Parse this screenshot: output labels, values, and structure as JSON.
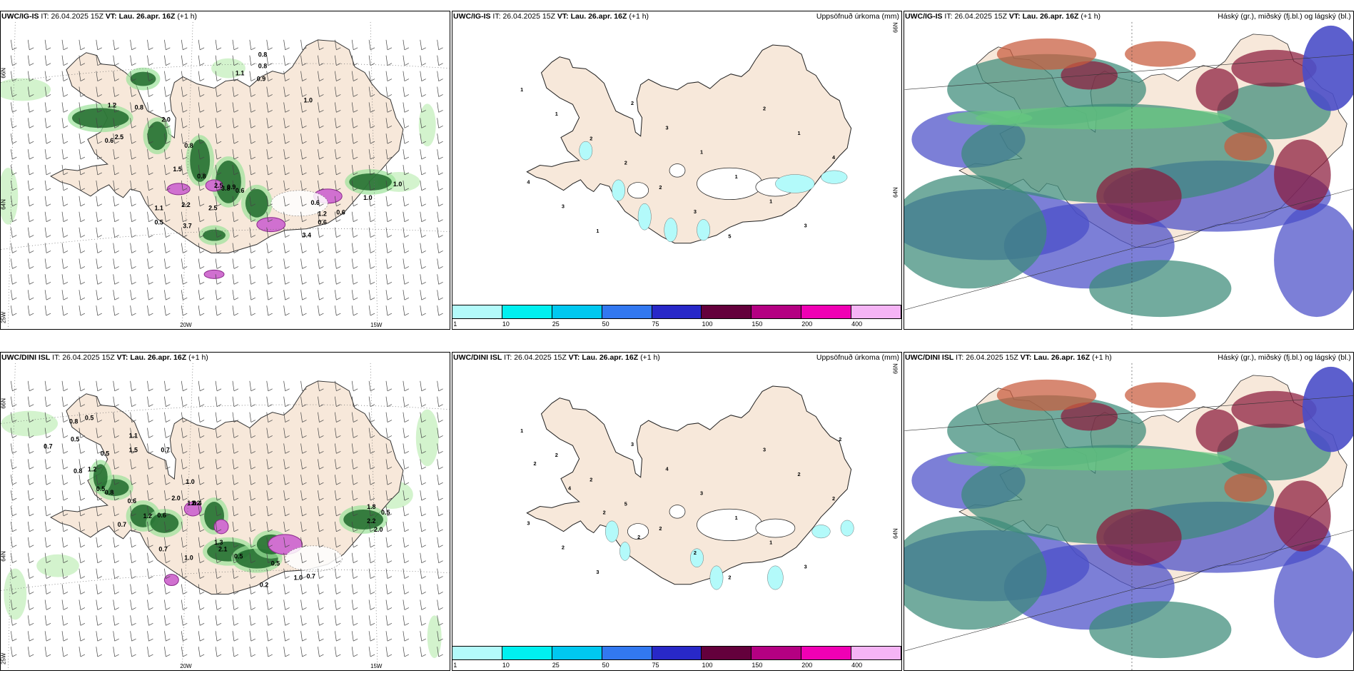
{
  "panels": [
    {
      "id": "p1",
      "model": "UWC/IG-IS",
      "it_label": "IT:",
      "it": "26.04.2025 15Z",
      "vt_label": "VT:",
      "vt": "Lau. 26.apr. 16Z",
      "lead": "(+1 h)",
      "right_title": "",
      "kind": "wind"
    },
    {
      "id": "p2",
      "model": "UWC/IG-IS",
      "it_label": "IT:",
      "it": "26.04.2025 15Z",
      "vt_label": "VT:",
      "vt": "Lau. 26.apr. 16Z",
      "lead": "(+1 h)",
      "right_title": "Uppsöfnuð úrkoma (mm)",
      "kind": "precip"
    },
    {
      "id": "p3",
      "model": "UWC/IG-IS",
      "it_label": "IT:",
      "it": "26.04.2025 15Z",
      "vt_label": "VT:",
      "vt": "Lau. 26.apr. 16Z",
      "lead": "(+1 h)",
      "right_title": "Háský (gr.), miðský (fj.bl.) og lágský (bl.)",
      "kind": "cloud"
    },
    {
      "id": "p4",
      "model": "UWC/DINI ISL",
      "it_label": "IT:",
      "it": "26.04.2025 15Z",
      "vt_label": "VT:",
      "vt": "Lau. 26.apr. 16Z",
      "lead": "(+1 h)",
      "right_title": "",
      "kind": "wind"
    },
    {
      "id": "p5",
      "model": "UWC/DINI ISL",
      "it_label": "IT:",
      "it": "26.04.2025 15Z",
      "vt_label": "VT:",
      "vt": "Lau. 26.apr. 16Z",
      "lead": "(+1 h)",
      "right_title": "Uppsöfnuð úrkoma (mm)",
      "kind": "precip"
    },
    {
      "id": "p6",
      "model": "UWC/DINI ISL",
      "it_label": "IT:",
      "it": "26.04.2025 15Z",
      "vt_label": "VT:",
      "vt": "Lau. 26.apr. 16Z",
      "lead": "(+1 h)",
      "right_title": "Háský (gr.), miðský (fj.bl.) og lágský (bl.)",
      "kind": "cloud"
    }
  ],
  "colorbar": {
    "labels": [
      "1",
      "10",
      "25",
      "50",
      "75",
      "100",
      "150",
      "200",
      "400"
    ],
    "colors": [
      "#b3fafa",
      "#00f0f0",
      "#00c8f0",
      "#3278f0",
      "#2828c8",
      "#64003c",
      "#b40082",
      "#f000b4",
      "#f5b4f5"
    ]
  },
  "axis_labels": {
    "lat66": "66N",
    "lat64": "64N",
    "lon25": "25W",
    "lon20": "20W",
    "lon15": "15W"
  },
  "wind_values": {
    "p1": [
      "0.8",
      "0.8",
      "1.1",
      "0.9",
      "1.0",
      "1.2",
      "0.8",
      "2.0",
      "0.6",
      "2.5",
      "0.8",
      "1.5",
      "0.8",
      "2.5",
      "3.8",
      "2.2",
      "2.5",
      "1.1",
      "0.5",
      "3.7",
      "0.9",
      "0.6",
      "0.6",
      "0.6",
      "1.0",
      "3.4",
      "1.2",
      "0.6",
      "1.0"
    ],
    "p4": [
      "0.5",
      "0.8",
      "0.5",
      "0.7",
      "1.1",
      "1.5",
      "0.5",
      "0.7",
      "1.2",
      "0.8",
      "0.5",
      "0.8",
      "0.6",
      "0.7",
      "1.0",
      "1.6",
      "2.0",
      "2.2",
      "1.2",
      "0.6",
      "0.4",
      "0.7",
      "1.0",
      "1.3",
      "2.1",
      "0.5",
      "0.2",
      "0.5",
      "1.0",
      "0.7",
      "1.8",
      "0.5",
      "2.2",
      "2.0"
    ]
  },
  "precip_values": {
    "p2": [
      "1",
      "1",
      "2",
      "2",
      "2",
      "3",
      "5",
      "2",
      "1",
      "4",
      "4",
      "3",
      "1",
      "2",
      "3",
      "1",
      "1",
      "1",
      "3"
    ],
    "p5": [
      "1",
      "2",
      "2",
      "5",
      "2",
      "2",
      "2",
      "3",
      "2",
      "2",
      "3",
      "2",
      "3",
      "3",
      "4",
      "3",
      "1",
      "1",
      "3",
      "2",
      "2",
      "4",
      "2",
      "2"
    ]
  }
}
